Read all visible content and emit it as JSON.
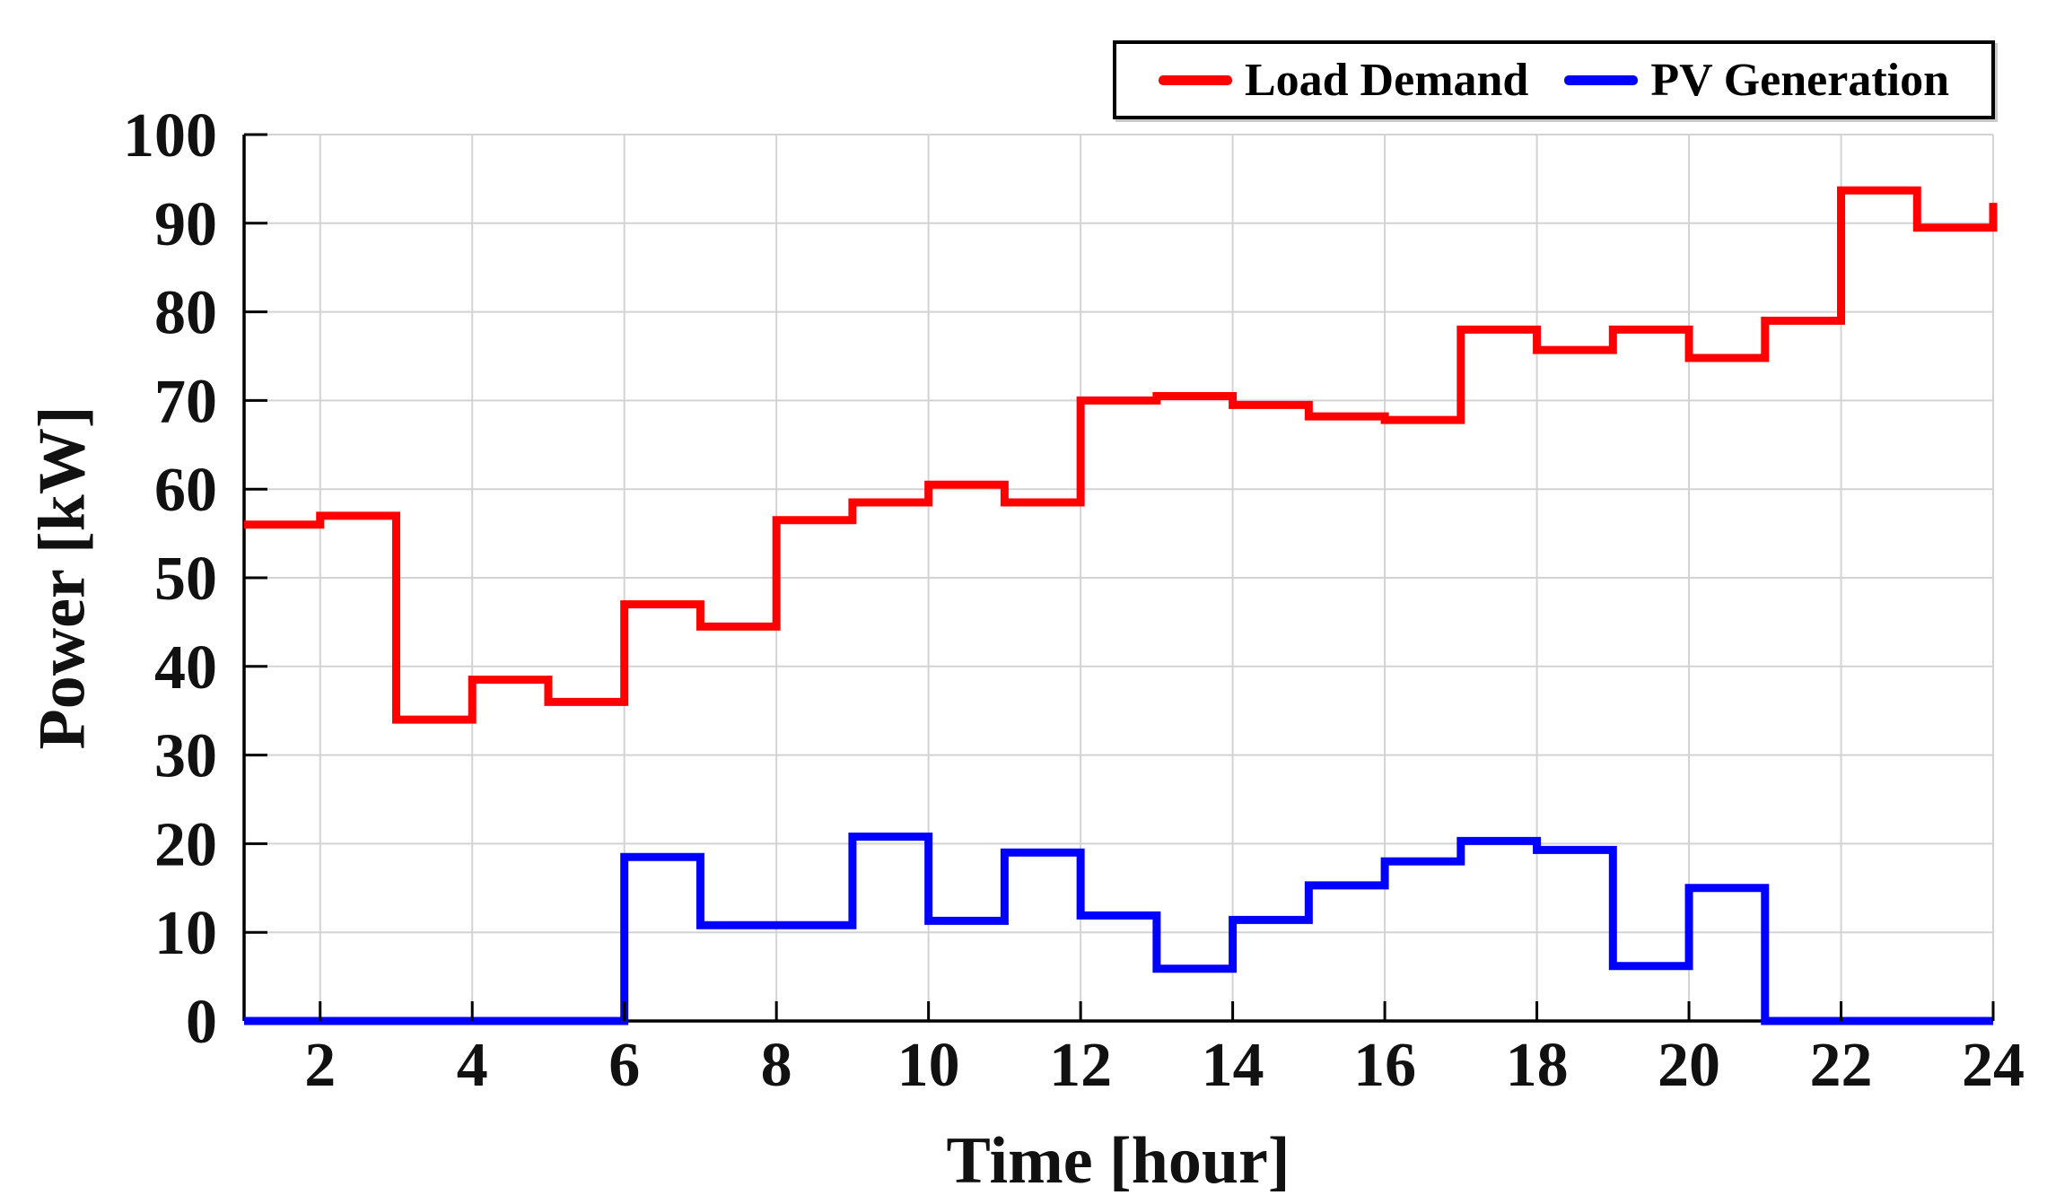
{
  "figure": {
    "background": "#ffffff",
    "grid_color": "#d3d3d3",
    "axis_color": "#000000"
  },
  "chart_data": {
    "type": "line",
    "subtype": "step-post",
    "title": "",
    "xlabel": "Time [hour]",
    "ylabel": "Power [kW]",
    "xlim": [
      1,
      24
    ],
    "ylim": [
      0,
      100
    ],
    "xticks": [
      2,
      4,
      6,
      8,
      10,
      12,
      14,
      16,
      18,
      20,
      22,
      24
    ],
    "yticks": [
      0,
      10,
      20,
      30,
      40,
      50,
      60,
      70,
      80,
      90,
      100
    ],
    "grid": true,
    "legend_position": "top-right",
    "x_hours": [
      1,
      2,
      3,
      4,
      5,
      6,
      7,
      8,
      9,
      10,
      11,
      12,
      13,
      14,
      15,
      16,
      17,
      18,
      19,
      20,
      21,
      22,
      23,
      24
    ],
    "series": [
      {
        "name": "Load Demand",
        "color": "#ff0000",
        "values": [
          56,
          57,
          34,
          38.5,
          36,
          47,
          44.5,
          56.5,
          58.5,
          60.5,
          58.5,
          70,
          70.5,
          69.5,
          68.2,
          67.8,
          78,
          75.7,
          78,
          74.8,
          79,
          93.7,
          89.5,
          92.3
        ]
      },
      {
        "name": "PV Generation",
        "color": "#0000ff",
        "values": [
          0,
          0,
          0,
          0,
          0,
          18.5,
          10.8,
          10.8,
          20.8,
          11.3,
          19,
          11.9,
          5.9,
          11.4,
          15.3,
          18,
          20.3,
          19.3,
          6.2,
          15,
          0,
          0,
          0,
          0
        ]
      }
    ]
  }
}
